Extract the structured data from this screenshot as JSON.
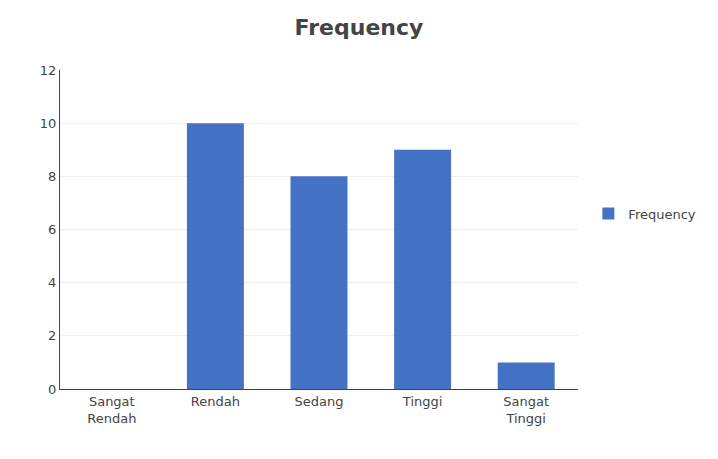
{
  "chart_data": {
    "type": "bar",
    "title": "Frequency",
    "categories": [
      "Sangat\nRendah",
      "Rendah",
      "Sedang",
      "Tinggi",
      "Sangat\nTinggi"
    ],
    "series": [
      {
        "name": "Frequency",
        "color": "#4472C4",
        "values": [
          0,
          10,
          8,
          9,
          1
        ]
      }
    ],
    "ylim": [
      0,
      12
    ],
    "yticks": [
      0,
      2,
      4,
      6,
      8,
      10,
      12
    ],
    "grid": true,
    "legend": "right"
  }
}
